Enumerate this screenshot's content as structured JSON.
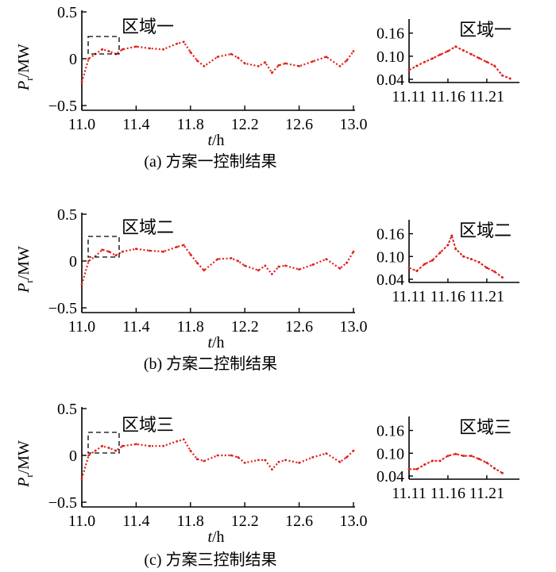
{
  "colors": {
    "series": "#e0201b",
    "axis": "#000000"
  },
  "main_x_ticks": [
    "11.0",
    "11.4",
    "11.8",
    "12.2",
    "12.6",
    "13.0"
  ],
  "main_y_ticks": [
    "0.5",
    "0",
    "−0.5"
  ],
  "zoom_x_ticks": [
    "11.11",
    "11.16",
    "11.21"
  ],
  "zoom_y_ticks": [
    "0.16",
    "0.10",
    "0.04"
  ],
  "xlabel_t": "t",
  "xlabel_unit": "/h",
  "ylabel_P": "P",
  "ylabel_sub": "r",
  "ylabel_unit": "/MW",
  "chart_data": [
    {
      "type": "line",
      "panel": "a",
      "caption": "(a)  方案一控制结果",
      "region_label": "区域一",
      "xlim": [
        11.0,
        13.0
      ],
      "ylim": [
        -0.5,
        0.5
      ],
      "x": [
        11.0,
        11.05,
        11.1,
        11.15,
        11.2,
        11.25,
        11.3,
        11.4,
        11.5,
        11.6,
        11.7,
        11.75,
        11.8,
        11.85,
        11.9,
        12.0,
        12.1,
        12.15,
        12.2,
        12.3,
        12.35,
        12.4,
        12.45,
        12.5,
        12.6,
        12.7,
        12.8,
        12.9,
        12.95,
        13.0
      ],
      "y": [
        -0.25,
        0.0,
        0.05,
        0.1,
        0.08,
        0.05,
        0.1,
        0.13,
        0.11,
        0.1,
        0.16,
        0.18,
        0.07,
        -0.02,
        -0.08,
        0.02,
        0.05,
        0.01,
        -0.05,
        -0.08,
        -0.04,
        -0.15,
        -0.07,
        -0.05,
        -0.08,
        -0.03,
        0.02,
        -0.08,
        -0.02,
        0.08
      ],
      "zoom": {
        "xlim": [
          11.11,
          11.25
        ],
        "ylim": [
          0.04,
          0.18
        ],
        "x": [
          11.11,
          11.12,
          11.13,
          11.14,
          11.15,
          11.16,
          11.17,
          11.18,
          11.19,
          11.2,
          11.21,
          11.22,
          11.23,
          11.24
        ],
        "y": [
          0.064,
          0.075,
          0.085,
          0.094,
          0.104,
          0.113,
          0.125,
          0.115,
          0.105,
          0.095,
          0.085,
          0.075,
          0.05,
          0.042
        ]
      }
    },
    {
      "type": "line",
      "panel": "b",
      "caption": "(b)  方案二控制结果",
      "region_label": "区域二",
      "xlim": [
        11.0,
        13.0
      ],
      "ylim": [
        -0.5,
        0.5
      ],
      "x": [
        11.0,
        11.05,
        11.1,
        11.15,
        11.2,
        11.25,
        11.3,
        11.4,
        11.5,
        11.6,
        11.7,
        11.75,
        11.8,
        11.85,
        11.9,
        12.0,
        12.1,
        12.15,
        12.2,
        12.3,
        12.35,
        12.4,
        12.45,
        12.5,
        12.6,
        12.7,
        12.8,
        12.9,
        12.95,
        13.0
      ],
      "y": [
        -0.25,
        0.0,
        0.05,
        0.12,
        0.1,
        0.06,
        0.1,
        0.13,
        0.11,
        0.1,
        0.15,
        0.17,
        0.07,
        -0.02,
        -0.1,
        0.02,
        0.03,
        0.0,
        -0.05,
        -0.1,
        -0.05,
        -0.14,
        -0.06,
        -0.05,
        -0.09,
        -0.04,
        0.02,
        -0.08,
        -0.02,
        0.1
      ],
      "zoom": {
        "xlim": [
          11.11,
          11.25
        ],
        "ylim": [
          0.04,
          0.18
        ],
        "x": [
          11.11,
          11.12,
          11.13,
          11.14,
          11.15,
          11.16,
          11.165,
          11.17,
          11.18,
          11.19,
          11.2,
          11.21,
          11.22,
          11.23
        ],
        "y": [
          0.07,
          0.062,
          0.08,
          0.09,
          0.11,
          0.13,
          0.155,
          0.12,
          0.1,
          0.093,
          0.085,
          0.07,
          0.06,
          0.045
        ]
      }
    },
    {
      "type": "line",
      "panel": "c",
      "caption": "(c)  方案三控制结果",
      "region_label": "区域三",
      "xlim": [
        11.0,
        13.0
      ],
      "ylim": [
        -0.5,
        0.5
      ],
      "x": [
        11.0,
        11.05,
        11.1,
        11.15,
        11.2,
        11.25,
        11.3,
        11.4,
        11.5,
        11.6,
        11.7,
        11.75,
        11.8,
        11.85,
        11.9,
        12.0,
        12.1,
        12.15,
        12.2,
        12.3,
        12.35,
        12.4,
        12.45,
        12.5,
        12.6,
        12.7,
        12.8,
        12.9,
        12.95,
        13.0
      ],
      "y": [
        -0.25,
        0.0,
        0.05,
        0.1,
        0.08,
        0.05,
        0.1,
        0.12,
        0.1,
        0.1,
        0.15,
        0.17,
        0.05,
        -0.04,
        -0.06,
        0.0,
        0.0,
        -0.02,
        -0.08,
        -0.05,
        -0.05,
        -0.15,
        -0.07,
        -0.05,
        -0.08,
        -0.02,
        0.02,
        -0.07,
        -0.02,
        0.05
      ],
      "zoom": {
        "xlim": [
          11.11,
          11.25
        ],
        "ylim": [
          0.04,
          0.18
        ],
        "x": [
          11.11,
          11.12,
          11.13,
          11.14,
          11.15,
          11.16,
          11.17,
          11.18,
          11.19,
          11.2,
          11.21,
          11.22,
          11.23
        ],
        "y": [
          0.058,
          0.058,
          0.07,
          0.08,
          0.08,
          0.093,
          0.098,
          0.093,
          0.093,
          0.085,
          0.075,
          0.06,
          0.048
        ]
      }
    }
  ]
}
